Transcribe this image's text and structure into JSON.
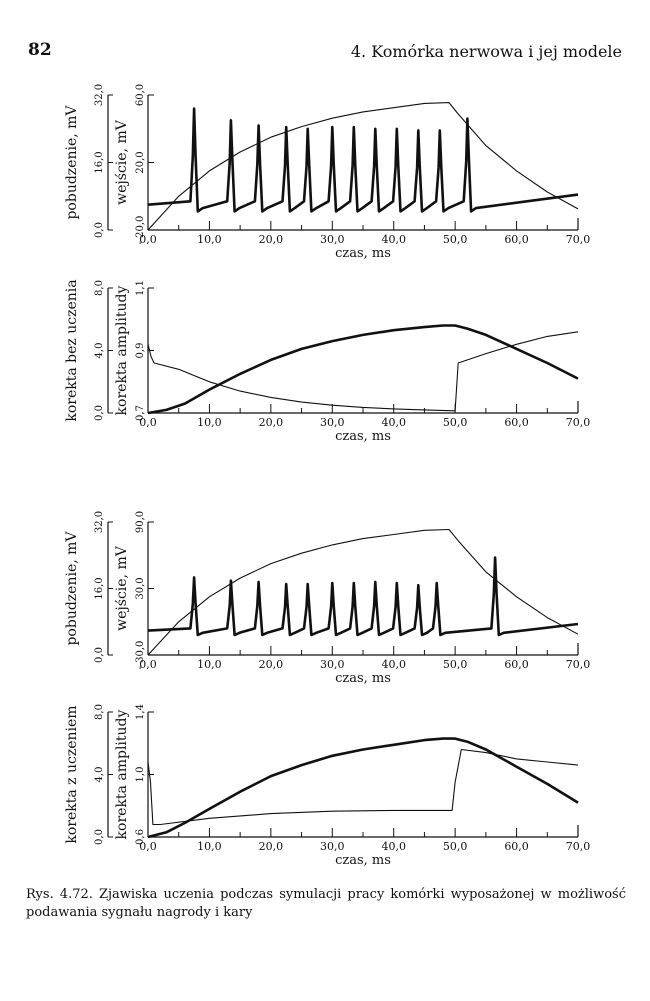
{
  "page": {
    "number": "82",
    "running_head": "4. Komórka nerwowa i jej modele",
    "caption": "Rys. 4.72. Zjawiska uczenia podczas symulacji pracy komórki wyposażonej w możliwość podawania sygnału nagrody i kary"
  },
  "chart_data": [
    {
      "type": "line",
      "panel": "excitation-reward",
      "xlabel": "czas, ms",
      "xlim": [
        0,
        70
      ],
      "xticks": [
        "0,0",
        "10,0",
        "20,0",
        "30,0",
        "40,0",
        "50,0",
        "60,0",
        "70,0"
      ],
      "ylabel_left": "pobudzenie, mV",
      "ylim_left": [
        0,
        32
      ],
      "yticks_left": [
        "0,0",
        "16,0",
        "32,0"
      ],
      "ylabel_right": "wejście, mV",
      "ylim_right": [
        -20,
        60
      ],
      "yticks_right": [
        "- 20,0",
        "20,0",
        "60,0"
      ],
      "series": [
        {
          "name": "pobudzenie",
          "axis": "left",
          "x": [
            0,
            5,
            10,
            15,
            20,
            25,
            30,
            35,
            40,
            45,
            49,
            50.5,
            52,
            55,
            60,
            65,
            70
          ],
          "values": [
            0,
            8,
            14,
            18.5,
            22,
            24.5,
            26.5,
            28,
            29,
            30,
            30.2,
            27.5,
            25,
            20,
            14,
            9,
            5
          ]
        },
        {
          "name": "wejście",
          "axis": "right",
          "rest": -5,
          "spikes": [
            7.5,
            13.5,
            18,
            22.5,
            26,
            30,
            33.5,
            37,
            40.5,
            44,
            47.5,
            52
          ],
          "peaks": [
            52,
            45,
            42,
            41,
            40,
            41,
            41,
            40,
            40,
            39,
            39,
            46
          ]
        }
      ]
    },
    {
      "type": "line",
      "panel": "correction-no-learning",
      "xlabel": "czas, ms",
      "xlim": [
        0,
        70
      ],
      "xticks": [
        "0,0",
        "10,0",
        "20,0",
        "30,0",
        "40,0",
        "50,0",
        "60,0",
        "70,0"
      ],
      "ylabel_left": "korekta bez uczenia",
      "ylim_left": [
        0,
        8
      ],
      "yticks_left": [
        "0,0",
        "4,0",
        "8,0"
      ],
      "ylabel_right": "korekta amplitudy",
      "ylim_right": [
        0.7,
        1.1
      ],
      "yticks_right": [
        "0,7",
        "0,9",
        "1,1"
      ],
      "series": [
        {
          "name": "korekta bez uczenia",
          "axis": "left",
          "x": [
            0,
            3,
            6,
            10,
            15,
            20,
            25,
            30,
            35,
            40,
            45,
            48,
            50,
            52,
            55,
            60,
            65,
            70
          ],
          "values": [
            0,
            0.2,
            0.6,
            1.5,
            2.5,
            3.4,
            4.1,
            4.6,
            5.0,
            5.3,
            5.5,
            5.6,
            5.6,
            5.4,
            5.0,
            4.1,
            3.2,
            2.2
          ]
        },
        {
          "name": "korekta amplitudy",
          "axis": "right",
          "x": [
            0,
            0.5,
            1,
            5,
            10,
            15,
            20,
            25,
            30,
            35,
            40,
            45,
            49.9,
            50,
            50.5,
            55,
            60,
            65,
            70
          ],
          "values": [
            0.92,
            0.88,
            0.86,
            0.84,
            0.8,
            0.77,
            0.75,
            0.735,
            0.725,
            0.718,
            0.713,
            0.71,
            0.707,
            0.707,
            0.86,
            0.89,
            0.92,
            0.945,
            0.96
          ]
        }
      ]
    },
    {
      "type": "line",
      "panel": "excitation-punishment",
      "xlabel": "czas, ms",
      "xlim": [
        0,
        70
      ],
      "xticks": [
        "0,0",
        "10,0",
        "20,0",
        "30,0",
        "40,0",
        "50,0",
        "60,0",
        "70,0"
      ],
      "ylabel_left": "pobudzenie, mV",
      "ylim_left": [
        0,
        32
      ],
      "yticks_left": [
        "0,0",
        "16,0",
        "32,0"
      ],
      "ylabel_right": "wejście, mV",
      "ylim_right": [
        -30,
        90
      ],
      "yticks_right": [
        "- 30,0",
        "30,0",
        "90,0"
      ],
      "series": [
        {
          "name": "pobudzenie",
          "axis": "left",
          "x": [
            0,
            5,
            10,
            15,
            20,
            25,
            30,
            35,
            40,
            45,
            49,
            50.5,
            52,
            55,
            60,
            65,
            70
          ],
          "values": [
            0,
            8,
            14,
            18.5,
            22,
            24.5,
            26.5,
            28,
            29,
            30,
            30.2,
            27.5,
            25,
            20,
            14,
            9,
            5
          ]
        },
        {
          "name": "wejście",
          "axis": "right",
          "rest": -8,
          "spikes": [
            7.5,
            13.5,
            18,
            22.5,
            26,
            30,
            33.5,
            37,
            40.5,
            44,
            47,
            56.5
          ],
          "peaks": [
            40,
            37,
            36,
            34,
            34,
            35,
            35,
            36,
            35,
            33,
            35,
            58
          ]
        }
      ]
    },
    {
      "type": "line",
      "panel": "correction-learning",
      "xlabel": "czas, ms",
      "xlim": [
        0,
        70
      ],
      "xticks": [
        "0,0",
        "10,0",
        "20,0",
        "30,0",
        "40,0",
        "50,0",
        "60,0",
        "70,0"
      ],
      "ylabel_left": "korekta z uczeniem",
      "ylim_left": [
        0,
        8
      ],
      "yticks_left": [
        "0,0",
        "4,0",
        "8,0"
      ],
      "ylabel_right": "korekta amplitudy",
      "ylim_right": [
        0.6,
        1.4
      ],
      "yticks_right": [
        "0,6",
        "1,0",
        "1,4"
      ],
      "series": [
        {
          "name": "korekta z uczeniem",
          "axis": "left",
          "x": [
            0,
            3,
            6,
            10,
            15,
            20,
            25,
            30,
            35,
            40,
            45,
            48,
            50,
            52,
            55,
            60,
            65,
            70
          ],
          "values": [
            0,
            0.3,
            0.9,
            1.8,
            2.9,
            3.9,
            4.6,
            5.2,
            5.6,
            5.9,
            6.2,
            6.3,
            6.3,
            6.1,
            5.6,
            4.5,
            3.4,
            2.2
          ]
        },
        {
          "name": "korekta amplitudy",
          "axis": "right",
          "x": [
            0,
            0.4,
            0.8,
            2,
            10,
            20,
            30,
            40,
            48,
            49.5,
            50,
            51,
            55,
            60,
            65,
            70
          ],
          "values": [
            1.08,
            0.95,
            0.68,
            0.68,
            0.72,
            0.75,
            0.765,
            0.77,
            0.77,
            0.77,
            0.95,
            1.16,
            1.14,
            1.1,
            1.08,
            1.06
          ]
        }
      ]
    }
  ]
}
